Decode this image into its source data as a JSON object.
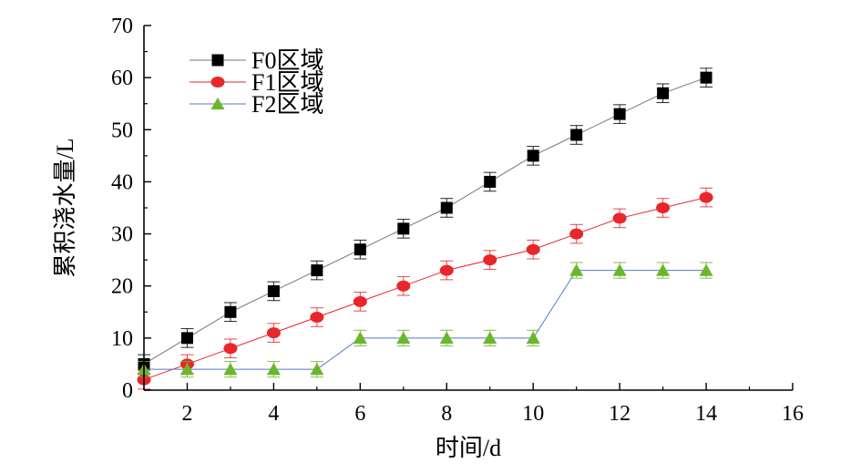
{
  "chart_data": {
    "type": "line",
    "title": "",
    "xlabel": "时间/d",
    "ylabel": "累积浇水量/L",
    "xlim": [
      1,
      16
    ],
    "ylim": [
      0,
      70
    ],
    "xticks": [
      2,
      4,
      6,
      8,
      10,
      12,
      14,
      16
    ],
    "yticks": [
      0,
      10,
      20,
      30,
      40,
      50,
      60,
      70
    ],
    "grid": false,
    "legend_position": "top-left",
    "x": [
      1,
      2,
      3,
      4,
      5,
      6,
      7,
      8,
      9,
      10,
      11,
      12,
      13,
      14
    ],
    "series": [
      {
        "name": "F0区域",
        "marker": "square",
        "color": "#000000",
        "line_color": "#777777",
        "values": [
          5,
          10,
          15,
          19,
          23,
          27,
          31,
          35,
          40,
          45,
          49,
          53,
          57,
          60
        ],
        "errors": [
          1.8,
          1.8,
          1.8,
          1.8,
          1.8,
          1.8,
          1.8,
          1.8,
          1.8,
          1.8,
          1.8,
          1.8,
          1.8,
          1.8
        ]
      },
      {
        "name": "F1区域",
        "marker": "circle",
        "color": "#e8262b",
        "line_color": "#e8262b",
        "values": [
          2,
          5,
          8,
          11,
          14,
          17,
          20,
          23,
          25,
          27,
          30,
          33,
          35,
          37
        ],
        "errors": [
          1.8,
          1.8,
          1.8,
          1.8,
          1.8,
          1.8,
          1.8,
          1.8,
          1.8,
          1.8,
          1.8,
          1.8,
          1.8,
          1.8
        ]
      },
      {
        "name": "F2区域",
        "marker": "triangle",
        "color": "#6cb62a",
        "line_color": "#4f7fbf",
        "values": [
          4,
          4,
          4,
          4,
          4,
          10,
          10,
          10,
          10,
          10,
          23,
          23,
          23,
          23
        ],
        "errors": [
          1.5,
          1.5,
          1.5,
          1.5,
          1.5,
          1.5,
          1.5,
          1.5,
          1.5,
          1.5,
          1.5,
          1.5,
          1.5,
          1.5
        ]
      }
    ]
  }
}
